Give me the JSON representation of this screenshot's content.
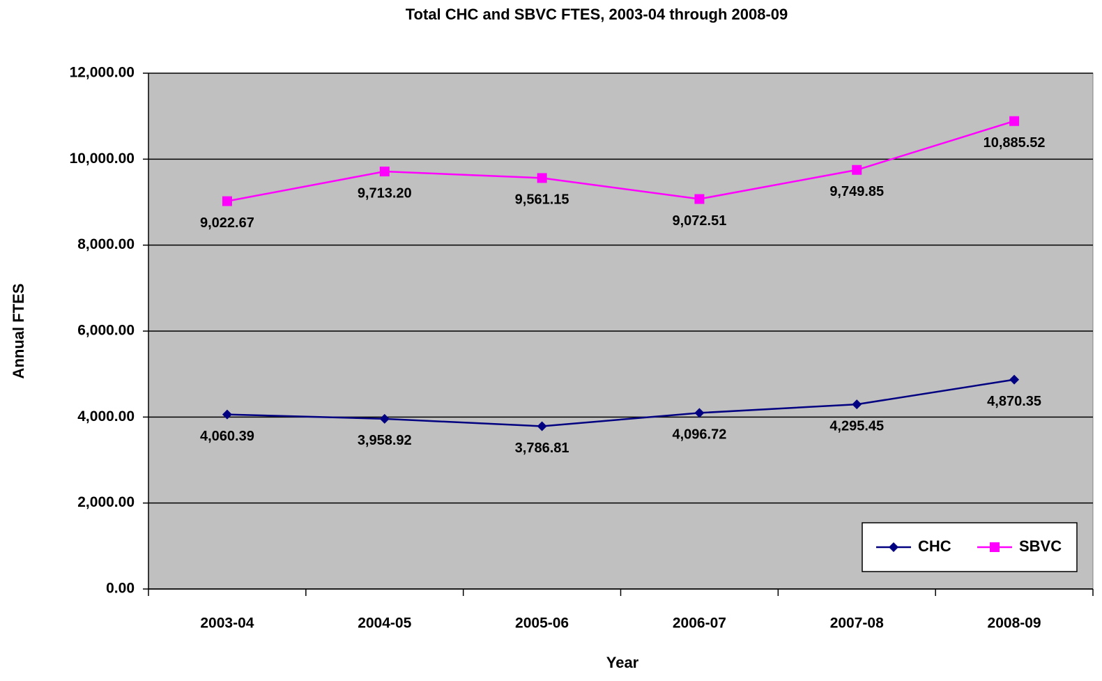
{
  "chart_data": {
    "type": "line",
    "title": "Total CHC and SBVC FTES, 2003-04 through 2008-09",
    "x_label": "Year",
    "y_label": "Annual FTES",
    "categories": [
      "2003-04",
      "2004-05",
      "2005-06",
      "2006-07",
      "2007-08",
      "2008-09"
    ],
    "series": [
      {
        "name": "CHC",
        "color": "#000080",
        "marker": "diamond",
        "values": [
          4060.39,
          3958.92,
          3786.81,
          4096.72,
          4295.45,
          4870.35
        ],
        "value_labels": [
          "4,060.39",
          "3,958.92",
          "3,786.81",
          "4,096.72",
          "4,295.45",
          "4,870.35"
        ]
      },
      {
        "name": "SBVC",
        "color": "#ff00ff",
        "marker": "square",
        "values": [
          9022.67,
          9713.2,
          9561.15,
          9072.51,
          9749.85,
          10885.52
        ],
        "value_labels": [
          "9,022.67",
          "9,713.20",
          "9,561.15",
          "9,072.51",
          "9,749.85",
          "10,885.52"
        ]
      }
    ],
    "ylim": [
      0,
      12000
    ],
    "yticks": [
      {
        "value": 0,
        "label": "0.00"
      },
      {
        "value": 2000,
        "label": "2,000.00"
      },
      {
        "value": 4000,
        "label": "4,000.00"
      },
      {
        "value": 6000,
        "label": "6,000.00"
      },
      {
        "value": 8000,
        "label": "8,000.00"
      },
      {
        "value": 10000,
        "label": "10,000.00"
      },
      {
        "value": 12000,
        "label": "12,000.00"
      }
    ],
    "grid": true,
    "legend": "lower right",
    "plot_background": "#c0c0c0"
  }
}
